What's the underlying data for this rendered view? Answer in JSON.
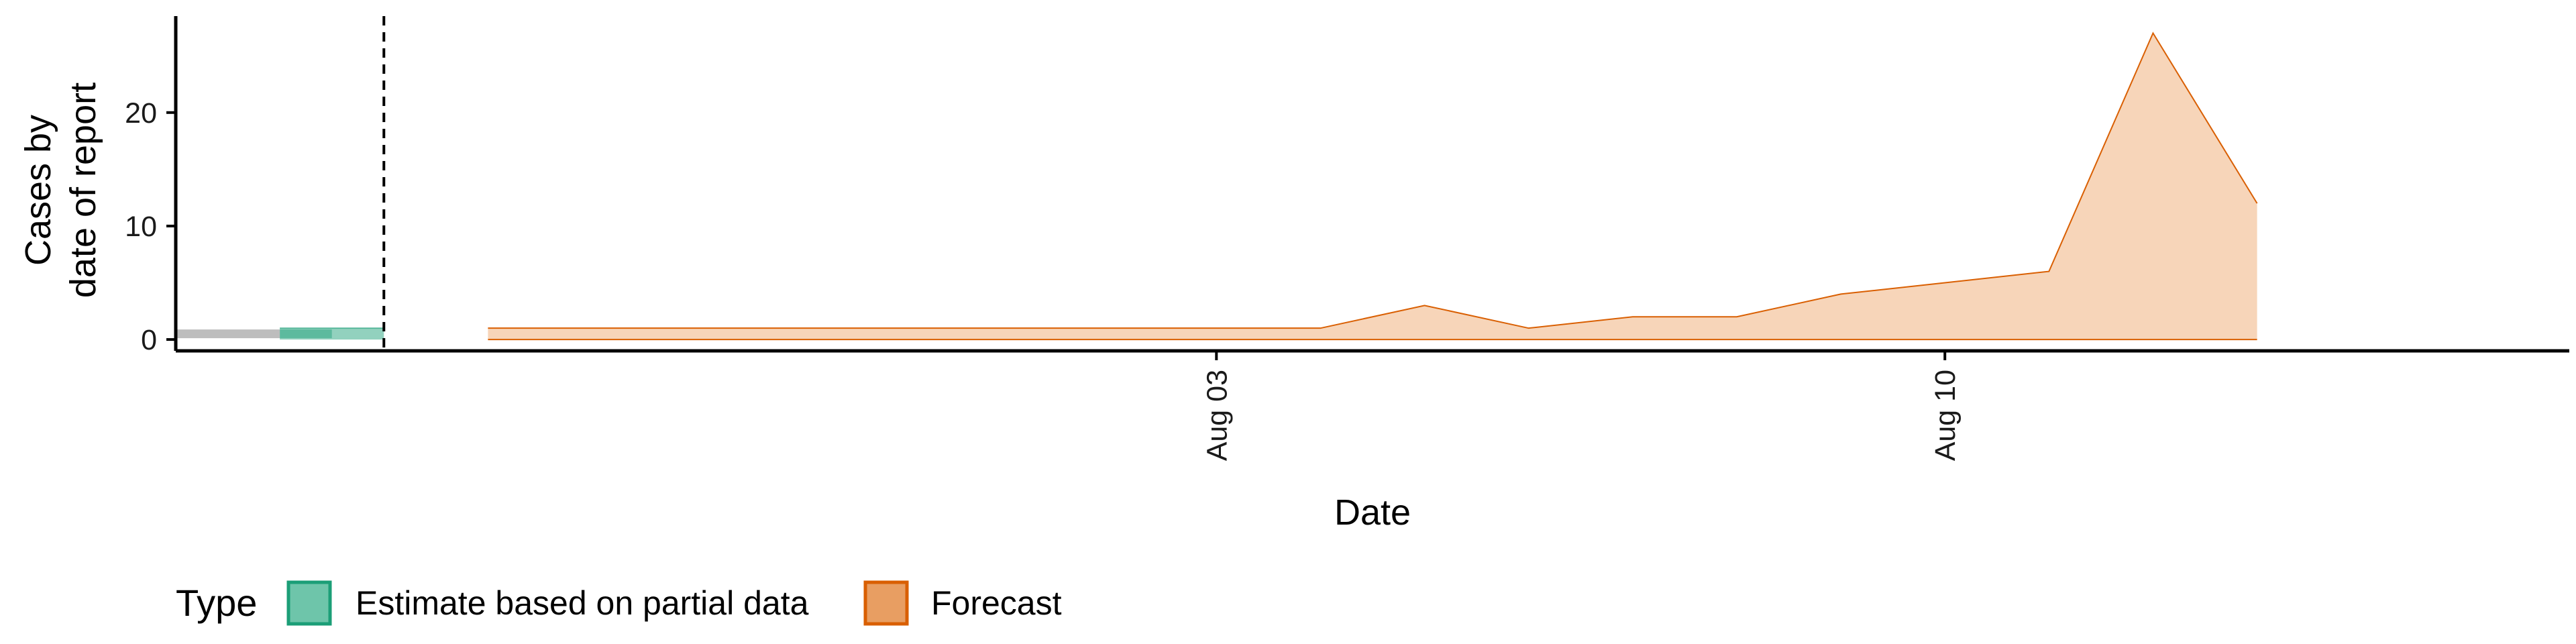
{
  "chart_data": {
    "type": "area",
    "xlabel": "Date",
    "ylabel_lines": [
      "Cases by",
      "date of report"
    ],
    "x_range": [
      "2020-07-24",
      "2020-08-16"
    ],
    "ylim": [
      -1,
      28.5
    ],
    "y_ticks": [
      0,
      10,
      20
    ],
    "x_ticks": [
      {
        "date": "2020-08-03",
        "label": "Aug 03"
      },
      {
        "date": "2020-08-10",
        "label": "Aug 10"
      }
    ],
    "vline_date": "2020-07-26",
    "grid": false,
    "legend": {
      "title": "Type",
      "position": "bottom-left",
      "items": [
        {
          "label": "Estimate based on partial data",
          "fill": "#66c2a5",
          "stroke": "#1b9e77"
        },
        {
          "label": "Forecast",
          "fill": "#e89e62",
          "stroke": "#d95f02"
        }
      ]
    },
    "series": [
      {
        "type_name": "Estimate based on partial data",
        "color": "#1b9e77",
        "dates": [
          "2020-07-25",
          "2020-07-26"
        ],
        "lower": [
          0,
          0
        ],
        "upper": [
          1,
          1
        ],
        "inner_lower": [
          0,
          0
        ],
        "inner_upper": [
          1,
          1
        ],
        "median_dates": [
          "2020-07-24",
          "2020-07-25"
        ],
        "median": [
          0.5,
          0.5
        ]
      },
      {
        "type_name": "Forecast",
        "color": "#d95f02",
        "dates": [
          "2020-07-27",
          "2020-07-28",
          "2020-07-29",
          "2020-07-30",
          "2020-07-31",
          "2020-08-01",
          "2020-08-02",
          "2020-08-03",
          "2020-08-04",
          "2020-08-05",
          "2020-08-06",
          "2020-08-07",
          "2020-08-08",
          "2020-08-09",
          "2020-08-10",
          "2020-08-11",
          "2020-08-12",
          "2020-08-13"
        ],
        "lower": [
          0,
          0,
          0,
          0,
          0,
          0,
          0,
          0,
          0,
          0,
          0,
          0,
          0,
          0,
          0,
          0,
          0,
          0
        ],
        "upper": [
          1,
          1,
          1,
          1,
          1,
          1,
          1,
          1,
          1,
          3,
          1,
          2,
          2,
          4,
          5,
          6,
          27,
          12
        ]
      }
    ]
  }
}
